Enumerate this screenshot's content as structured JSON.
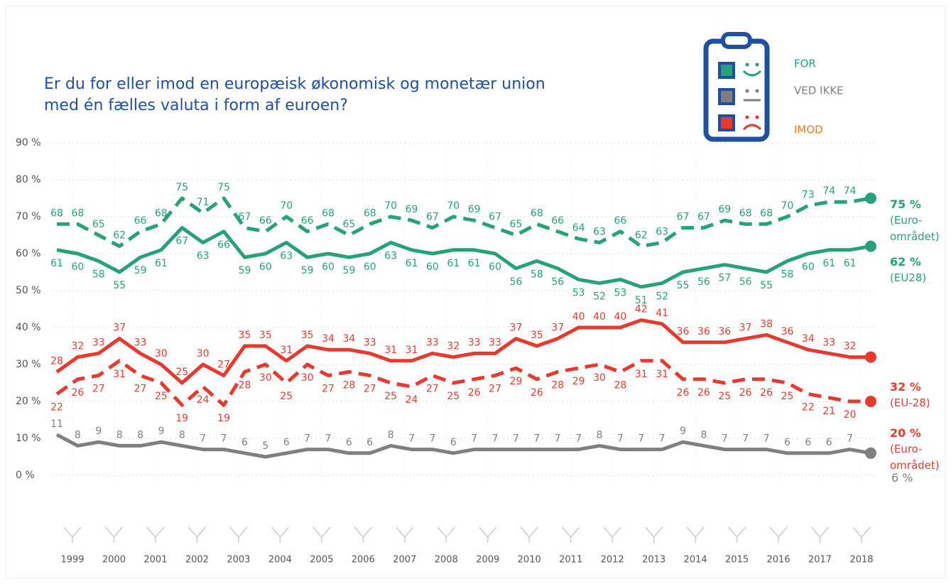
{
  "chart_data": {
    "type": "line",
    "title": "Er du for eller imod en europæisk økonomisk og monetær union med én fælles valuta i form af euroen?",
    "legend": [
      {
        "label": "FOR",
        "color": "#26a17b"
      },
      {
        "label": "VED IKKE",
        "color": "#7f7f7f"
      },
      {
        "label": "IMOD",
        "color": "#f07d1e"
      }
    ],
    "xticks": [
      "1999",
      "2000",
      "2001",
      "2002",
      "2003",
      "2004",
      "2005",
      "2006",
      "2007",
      "2008",
      "2009",
      "2010",
      "2011",
      "2012",
      "2013",
      "2014",
      "2015",
      "2016",
      "2017",
      "2018"
    ],
    "ylim": [
      0,
      90
    ],
    "yticks": [
      {
        "value": 0,
        "label": "0 %"
      },
      {
        "value": 10,
        "label": "10 %"
      },
      {
        "value": 20,
        "label": "20 %"
      },
      {
        "value": 30,
        "label": "30 %"
      },
      {
        "value": 40,
        "label": "40 %"
      },
      {
        "value": 50,
        "label": "50 %"
      },
      {
        "value": 60,
        "label": "60 %"
      },
      {
        "value": 70,
        "label": "70 %"
      },
      {
        "value": 80,
        "label": "80 %"
      },
      {
        "value": 90,
        "label": "90 %"
      }
    ],
    "grid": true,
    "series": [
      {
        "name": "(Euro-området)",
        "color": "#26a17b",
        "dashed": true,
        "end_label": "75 %",
        "values": [
          68,
          68,
          65,
          62,
          66,
          68,
          75,
          71,
          75,
          67,
          66,
          70,
          66,
          68,
          65,
          68,
          70,
          69,
          67,
          70,
          69,
          67,
          65,
          68,
          66,
          64,
          63,
          66,
          62,
          63,
          67,
          67,
          69,
          68,
          68,
          70,
          73,
          74,
          74,
          75
        ]
      },
      {
        "name": "(EU28)",
        "color": "#26a17b",
        "dashed": false,
        "end_label": "62 %",
        "values": [
          61,
          60,
          58,
          55,
          59,
          61,
          67,
          63,
          66,
          59,
          60,
          63,
          59,
          60,
          59,
          60,
          63,
          61,
          60,
          61,
          61,
          60,
          56,
          58,
          56,
          53,
          52,
          53,
          51,
          52,
          55,
          56,
          57,
          56,
          55,
          58,
          60,
          61,
          61,
          62
        ]
      },
      {
        "name": "(EU-28)",
        "color": "#e8392f",
        "dashed": false,
        "end_label": "32 %",
        "values": [
          28,
          32,
          33,
          37,
          33,
          30,
          25,
          30,
          27,
          35,
          35,
          31,
          35,
          34,
          34,
          33,
          31,
          31,
          33,
          32,
          33,
          33,
          37,
          35,
          37,
          40,
          40,
          40,
          42,
          41,
          36,
          36,
          36,
          37,
          38,
          36,
          34,
          33,
          32,
          32
        ]
      },
      {
        "name": "(Euro-området)",
        "color": "#e8392f",
        "dashed": true,
        "end_label": "20 %",
        "values": [
          22,
          26,
          27,
          31,
          27,
          25,
          19,
          24,
          19,
          28,
          30,
          25,
          30,
          27,
          28,
          27,
          25,
          24,
          27,
          25,
          26,
          27,
          29,
          26,
          28,
          29,
          30,
          28,
          31,
          31,
          26,
          26,
          25,
          26,
          26,
          25,
          22,
          21,
          20,
          20
        ]
      },
      {
        "color": "#7f7f7f",
        "dashed": false,
        "end_label": "6 %",
        "values": [
          11,
          8,
          9,
          8,
          8,
          9,
          8,
          7,
          7,
          6,
          5,
          6,
          7,
          7,
          6,
          6,
          8,
          7,
          7,
          6,
          7,
          7,
          7,
          7,
          7,
          7,
          8,
          7,
          7,
          7,
          9,
          8,
          7,
          7,
          7,
          6,
          6,
          6,
          7,
          6
        ]
      }
    ]
  }
}
